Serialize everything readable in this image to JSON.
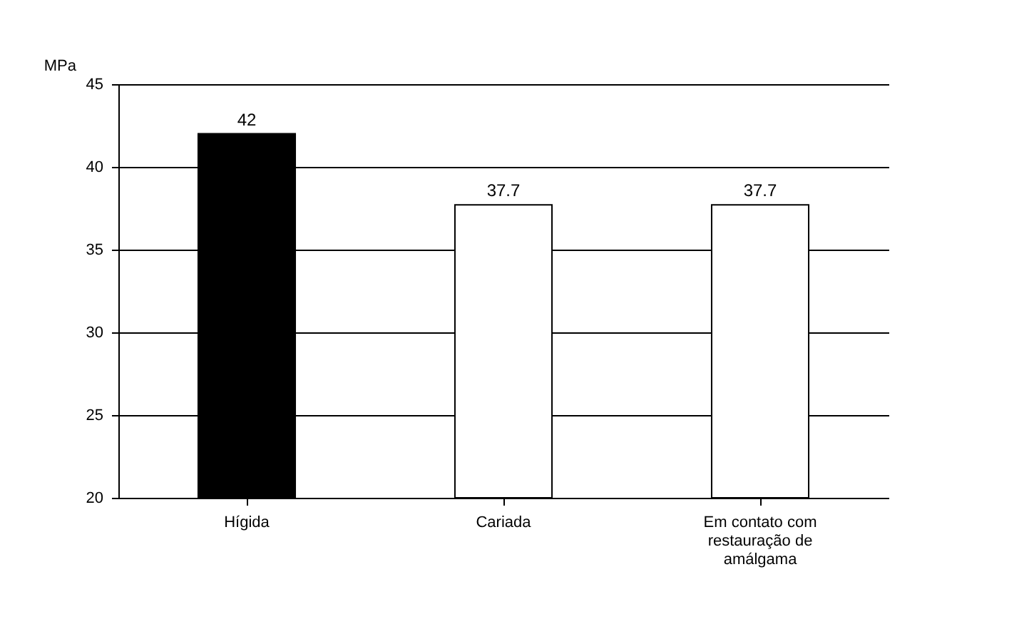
{
  "chart_data": {
    "type": "bar",
    "ylabel": "MPa",
    "categories": [
      "Hígida",
      "Cariada",
      "Em contato com restauração de amálgama"
    ],
    "values": [
      42,
      37.7,
      37.7
    ],
    "colors": [
      "#000000",
      "#ffffff",
      "#ffffff"
    ],
    "ylim": [
      20,
      45
    ],
    "yticks": [
      20,
      25,
      30,
      35,
      40,
      45
    ],
    "grid": "y",
    "data_labels": true
  }
}
